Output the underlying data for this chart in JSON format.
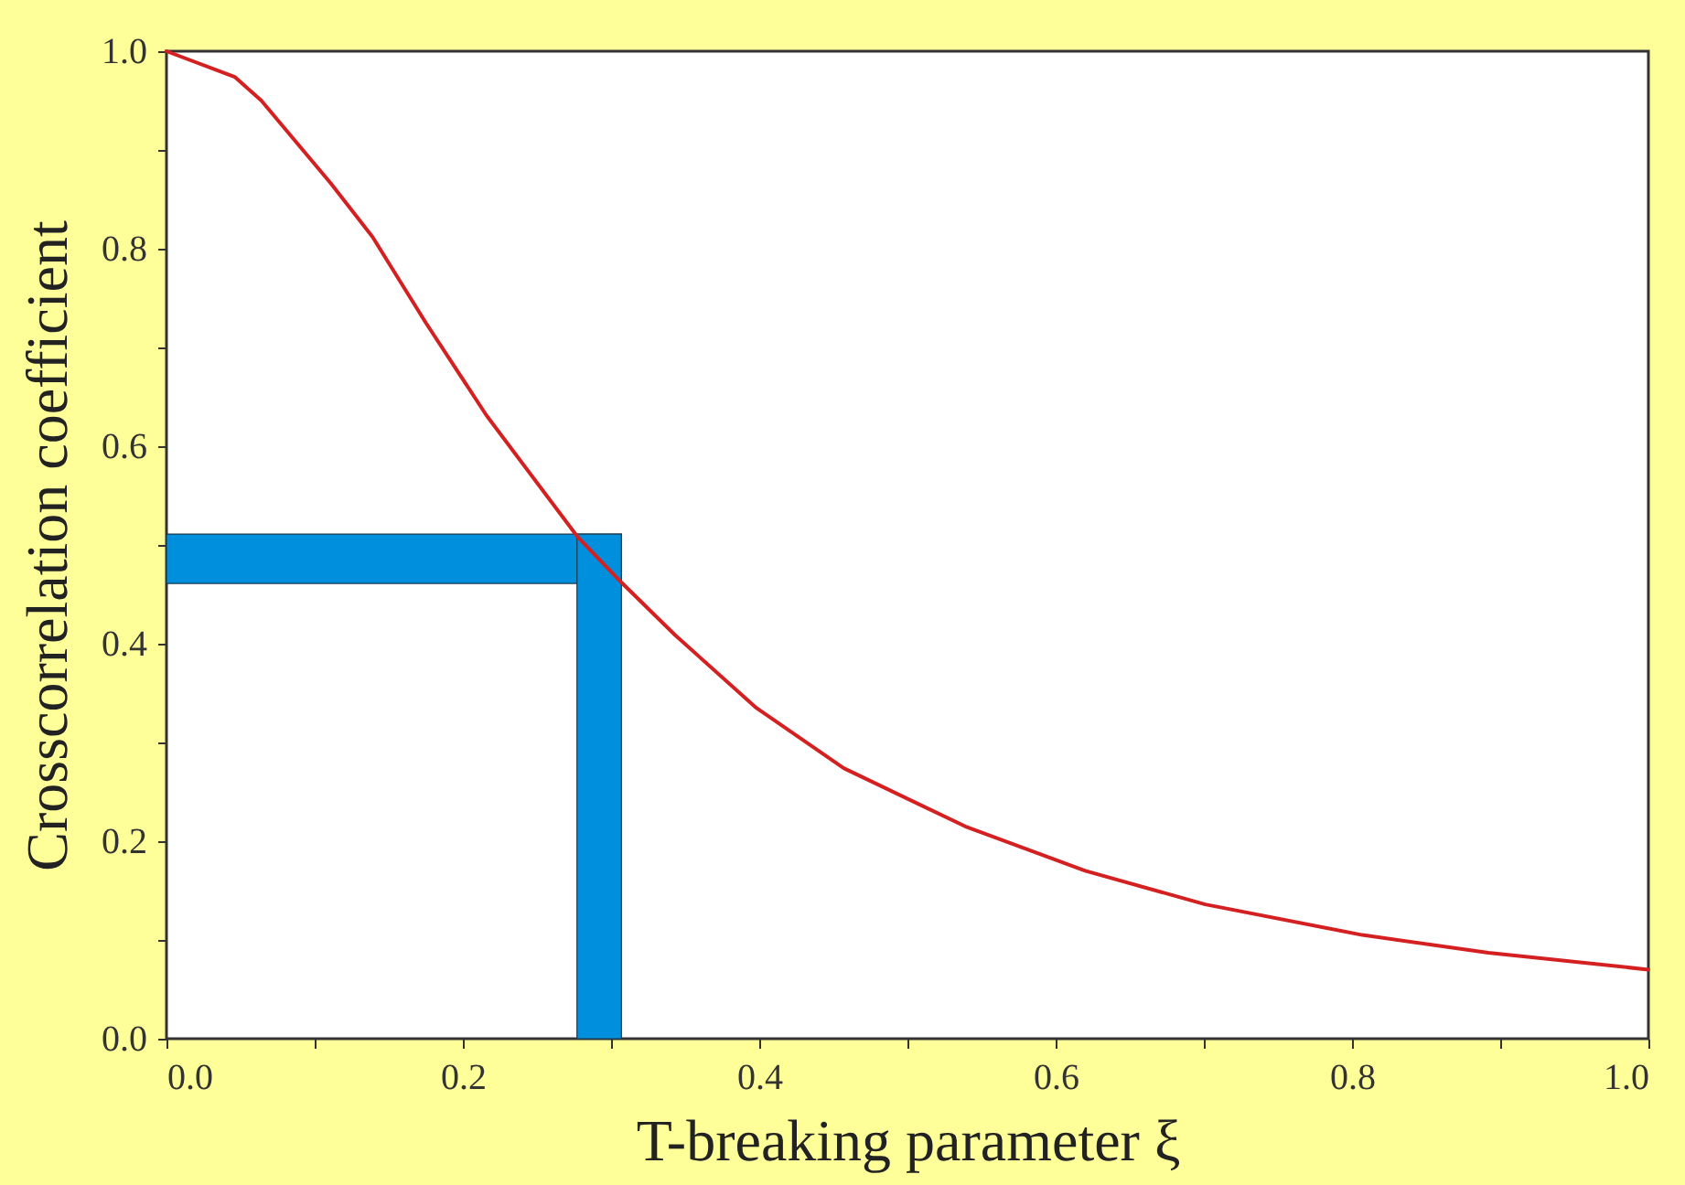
{
  "chart_data": {
    "type": "line",
    "xlabel": "T-breaking parameter ξ",
    "ylabel": "Crosscorrelation coefficient",
    "x": [
      0,
      0.046,
      0.064,
      0.111,
      0.139,
      0.175,
      0.216,
      0.277,
      0.307,
      0.343,
      0.398,
      0.457,
      0.539,
      0.62,
      0.701,
      0.807,
      0.892,
      1.0
    ],
    "series": [
      {
        "color": "#d42020",
        "values": [
          1.0,
          0.974,
          0.95,
          0.866,
          0.812,
          0.725,
          0.631,
          0.509,
          0.462,
          0.409,
          0.335,
          0.274,
          0.215,
          0.17,
          0.136,
          0.105,
          0.087,
          0.07
        ]
      }
    ],
    "xlim": [
      0,
      1.0
    ],
    "ylim": [
      0,
      1.0
    ],
    "xticks": [
      {
        "value": 0,
        "label": "0.0"
      },
      {
        "value": 0.1,
        "label": null
      },
      0.2,
      {
        "value": 0.3,
        "label": null
      },
      0.4,
      {
        "value": 0.5,
        "label": null
      },
      0.6,
      {
        "value": 0.7,
        "label": null
      },
      0.8,
      {
        "value": 0.9,
        "label": null
      },
      {
        "value": 1,
        "label": "1.0"
      }
    ],
    "yticks": [
      {
        "value": 0,
        "label": "0.0"
      },
      {
        "value": 0.1,
        "label": null
      },
      0.2,
      {
        "value": 0.3,
        "label": null
      },
      0.4,
      {
        "value": 0.5,
        "label": null
      },
      0.6,
      {
        "value": 0.7,
        "label": null
      },
      0.8,
      {
        "value": 0.9,
        "label": null
      },
      {
        "value": 1,
        "label": "1.0"
      }
    ],
    "bands": [
      {
        "axis": "y",
        "from": 0.461,
        "to": 0.511,
        "color": "#008fdc"
      },
      {
        "axis": "x",
        "from": 0.277,
        "to": 0.307,
        "color": "#008fdc"
      }
    ],
    "grid": false,
    "marker": "none",
    "line_style": "solid"
  }
}
